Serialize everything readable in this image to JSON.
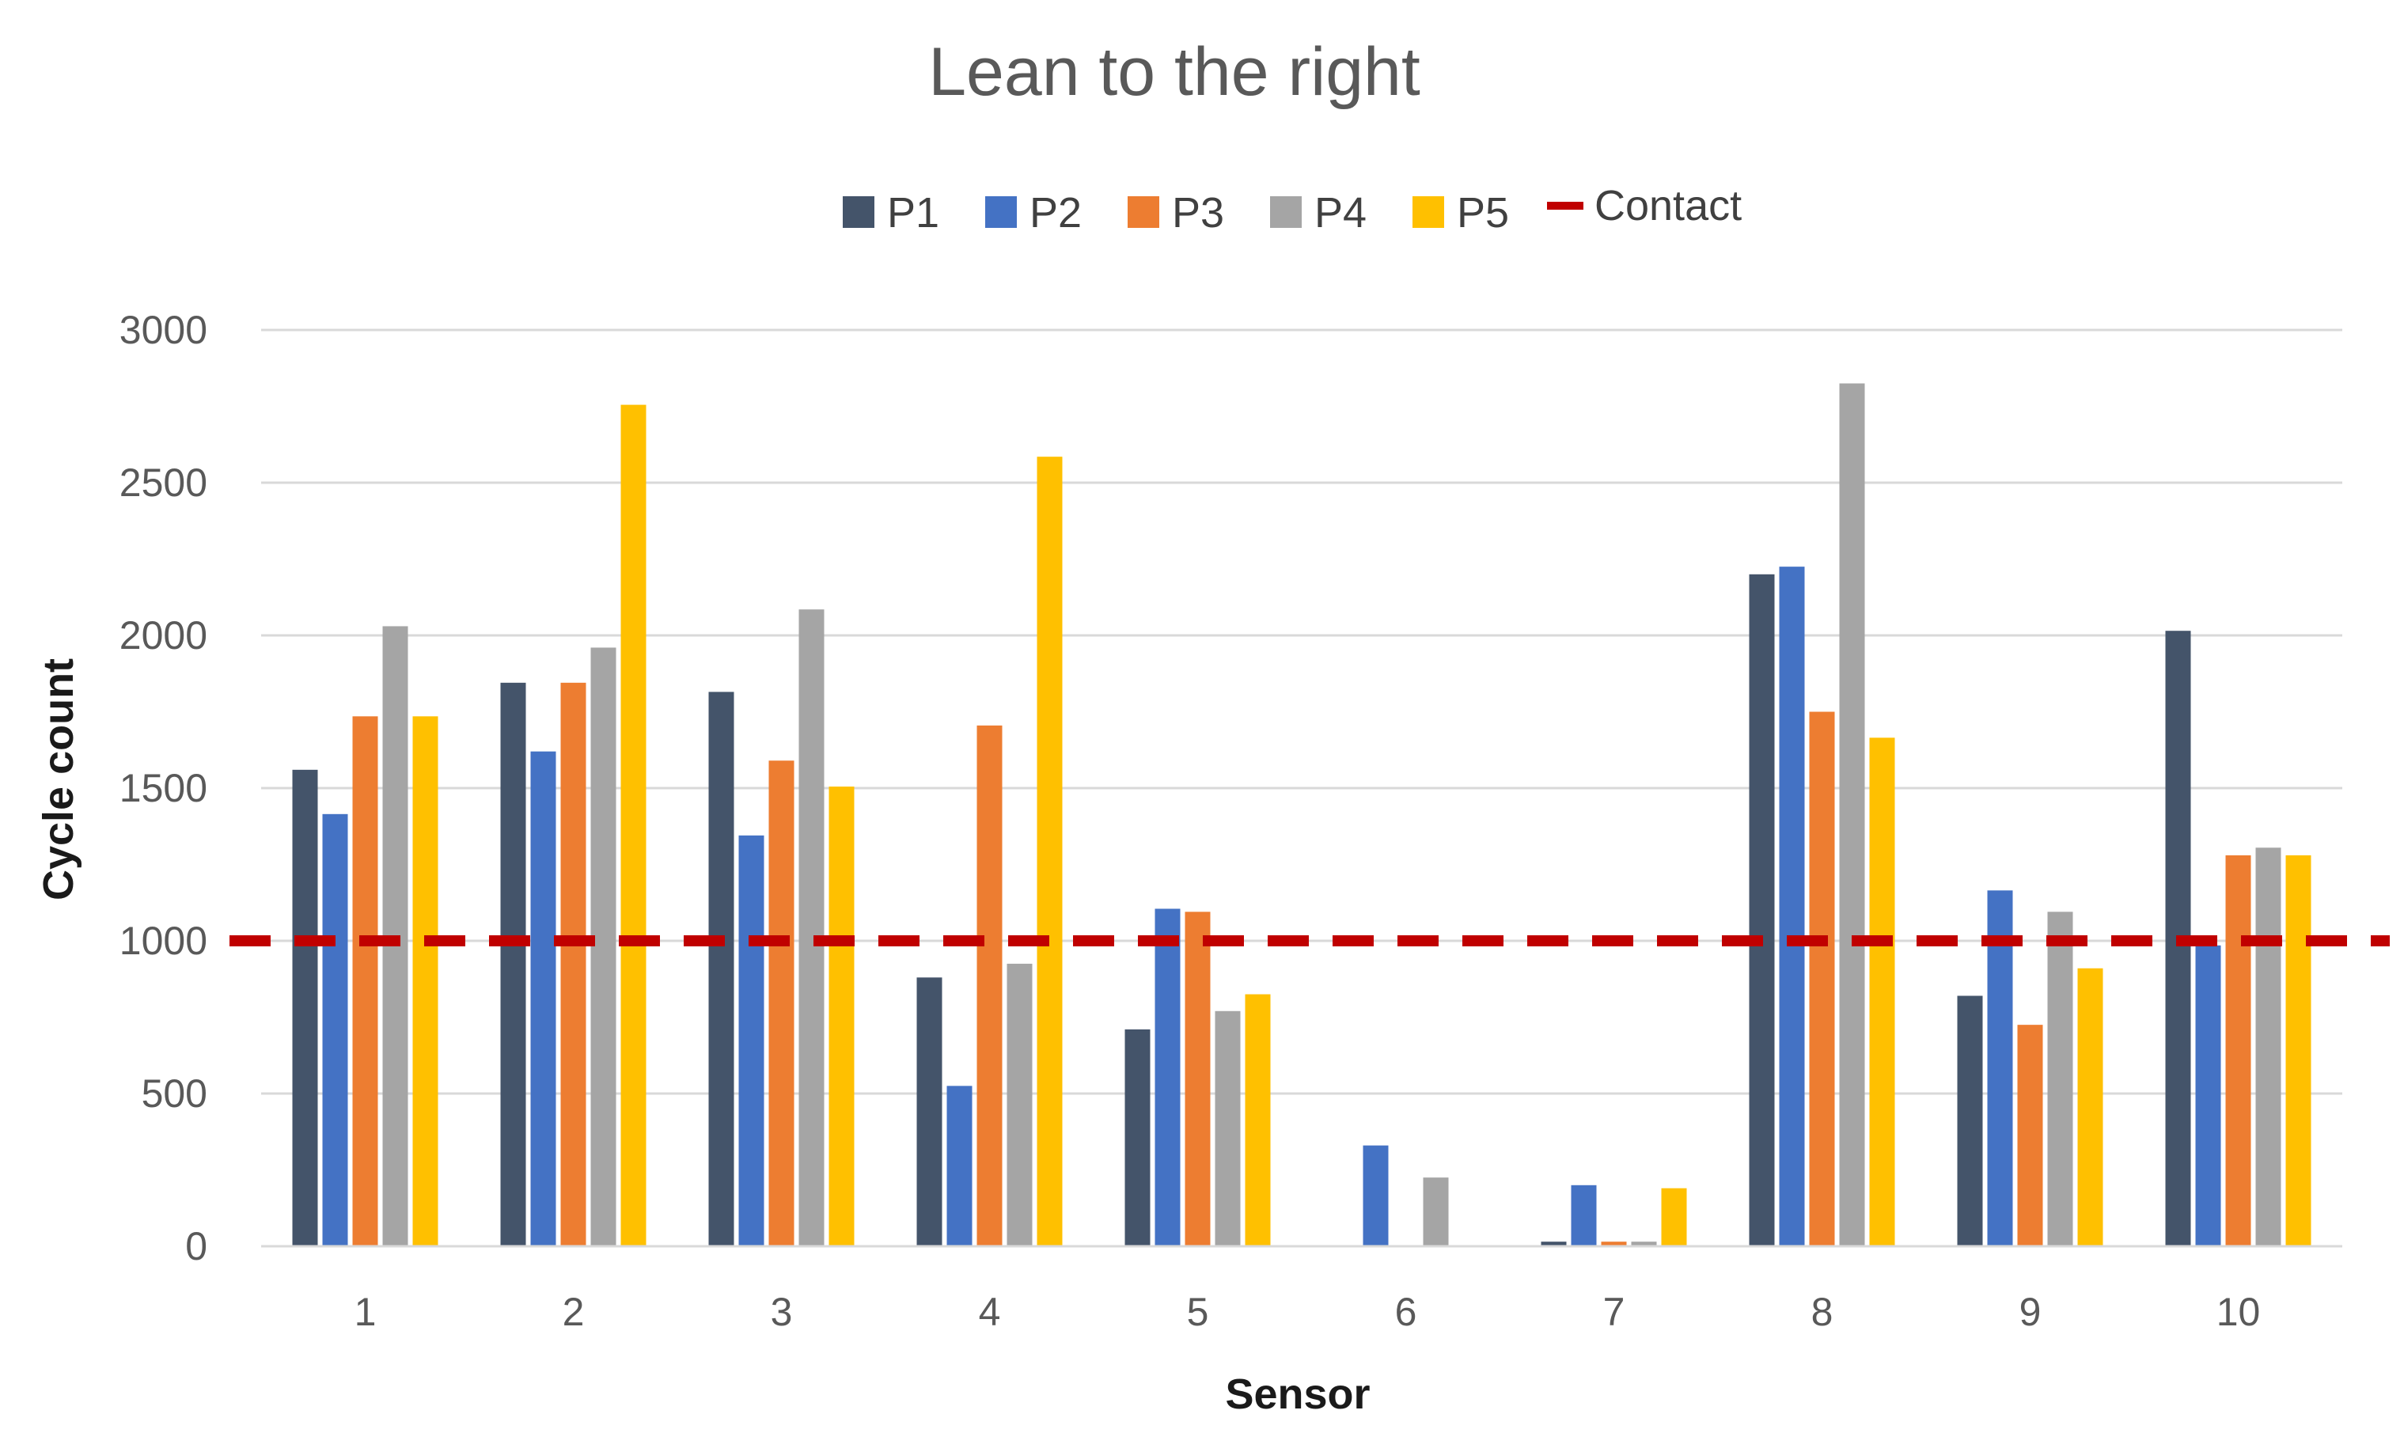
{
  "chart_data": {
    "type": "bar",
    "title": "Lean to the right",
    "xlabel": "Sensor",
    "ylabel": "Cycle count",
    "ylim": [
      0,
      3000
    ],
    "yticks": [
      0,
      500,
      1000,
      1500,
      2000,
      2500,
      3000
    ],
    "grid": true,
    "legend_position": "top",
    "categories": [
      "1",
      "2",
      "3",
      "4",
      "5",
      "6",
      "7",
      "8",
      "9",
      "10"
    ],
    "series": [
      {
        "name": "P1",
        "color": "#44546A",
        "values": [
          1560,
          1845,
          1815,
          880,
          710,
          0,
          15,
          2200,
          820,
          2015
        ]
      },
      {
        "name": "P2",
        "color": "#4472C4",
        "values": [
          1415,
          1620,
          1345,
          525,
          1105,
          330,
          200,
          2225,
          1165,
          985
        ]
      },
      {
        "name": "P3",
        "color": "#ED7D31",
        "values": [
          1735,
          1845,
          1590,
          1705,
          1095,
          0,
          15,
          1750,
          725,
          1280
        ]
      },
      {
        "name": "P4",
        "color": "#A5A5A5",
        "values": [
          2030,
          1960,
          2085,
          925,
          770,
          225,
          15,
          2825,
          1095,
          1305
        ]
      },
      {
        "name": "P5",
        "color": "#FFC000",
        "values": [
          1735,
          2755,
          1505,
          2585,
          825,
          0,
          190,
          1665,
          910,
          1280
        ]
      }
    ],
    "reference_line": {
      "name": "Contact",
      "value": 1000,
      "color": "#C00000",
      "style": "dashed"
    }
  }
}
